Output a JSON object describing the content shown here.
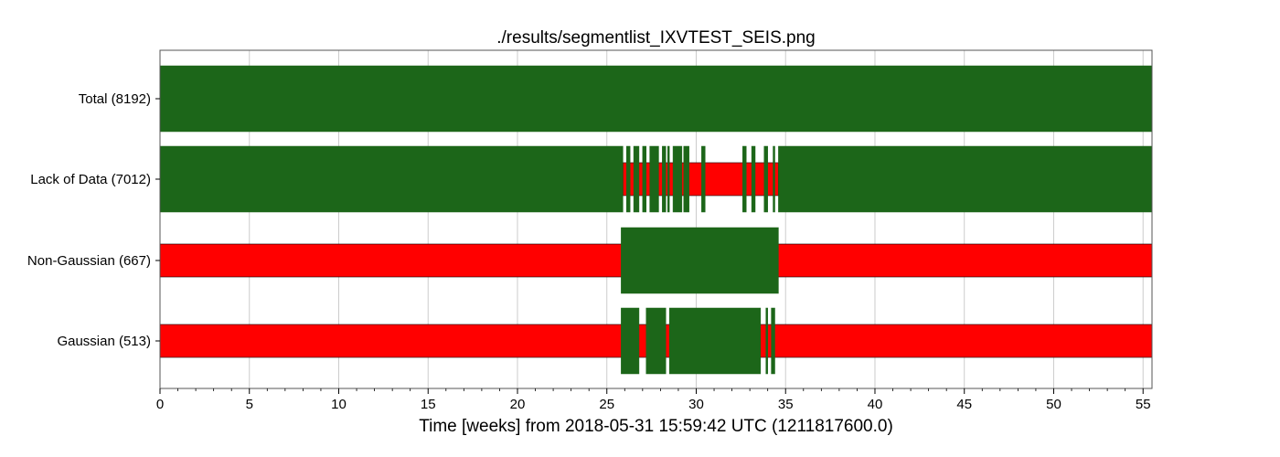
{
  "chart_data": {
    "type": "segment",
    "title": "./results/segmentlist_IXVTEST_SEIS.png",
    "xlabel": "Time [weeks] from 2018-05-31 15:59:42 UTC (1211817600.0)",
    "ylabel": "",
    "xlim": [
      0,
      55.5
    ],
    "x_ticks": [
      0,
      5,
      10,
      15,
      20,
      25,
      30,
      35,
      40,
      45,
      50,
      55
    ],
    "grid": true,
    "colors": {
      "active": "#1c6619",
      "known": "#ff0000"
    },
    "rows": [
      {
        "label": "Total (8192)",
        "known": [],
        "active": [
          [
            0,
            55.5
          ]
        ]
      },
      {
        "label": "Lack of Data (7012)",
        "known": [
          [
            25.9,
            34.6
          ]
        ],
        "active": [
          [
            0,
            25.9
          ],
          [
            26.1,
            26.3
          ],
          [
            26.5,
            26.8
          ],
          [
            27.0,
            27.2
          ],
          [
            27.4,
            27.9
          ],
          [
            28.1,
            28.3
          ],
          [
            28.4,
            28.5
          ],
          [
            28.7,
            29.2
          ],
          [
            29.3,
            29.6
          ],
          [
            30.3,
            30.5
          ],
          [
            32.6,
            32.8
          ],
          [
            33.1,
            33.3
          ],
          [
            33.8,
            34.0
          ],
          [
            34.3,
            34.4
          ],
          [
            34.6,
            55.5
          ]
        ]
      },
      {
        "label": "Non-Gaussian (667)",
        "known": [
          [
            0,
            55.5
          ]
        ],
        "active": [
          [
            25.8,
            34.6
          ]
        ]
      },
      {
        "label": "Gaussian (513)",
        "known": [
          [
            0,
            55.5
          ]
        ],
        "active": [
          [
            25.8,
            26.8
          ],
          [
            27.2,
            28.3
          ],
          [
            28.5,
            33.6
          ],
          [
            33.9,
            34.0
          ],
          [
            34.2,
            34.4
          ]
        ]
      }
    ]
  }
}
